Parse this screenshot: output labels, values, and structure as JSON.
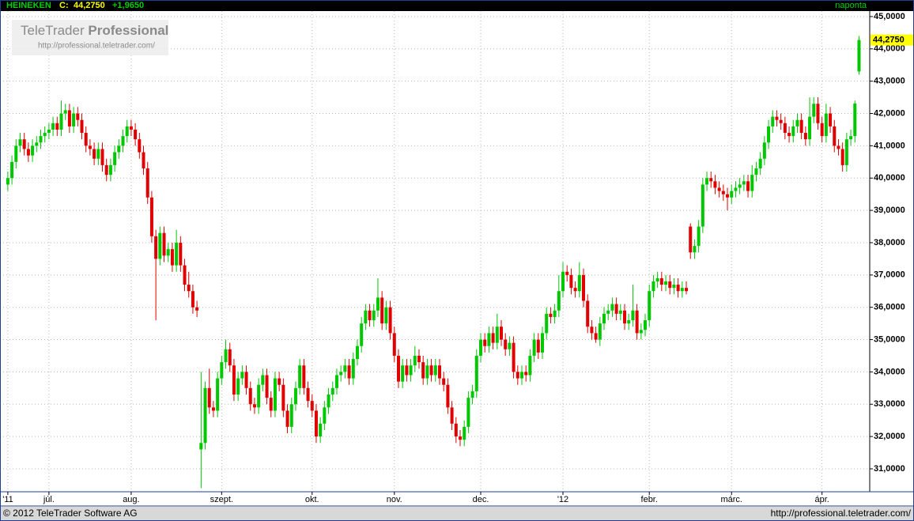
{
  "header": {
    "symbol": "HEINEKEN",
    "close_label": "C:",
    "price": "44,2750",
    "change": "+1,9650",
    "period": "naponta"
  },
  "watermark": {
    "brand": "TeleTrader",
    "product": "Professional",
    "url": "http://professional.teletrader.com/"
  },
  "footer": {
    "copyright": "© 2012 TeleTrader Software AG",
    "url": "http://professional.teletrader.com/"
  },
  "chart_data": {
    "type": "candlestick",
    "up_color": "#00c800",
    "down_color": "#e00000",
    "grid": true,
    "ylim": [
      30.29,
      45.17
    ],
    "yticks": [
      {
        "value": 31,
        "label": "31,0000"
      },
      {
        "value": 32,
        "label": "32,0000"
      },
      {
        "value": 33,
        "label": "33,0000"
      },
      {
        "value": 34,
        "label": "34,0000"
      },
      {
        "value": 35,
        "label": "35,0000"
      },
      {
        "value": 36,
        "label": "36,0000"
      },
      {
        "value": 37,
        "label": "37,0000"
      },
      {
        "value": 38,
        "label": "38,0000"
      },
      {
        "value": 39,
        "label": "39,0000"
      },
      {
        "value": 40,
        "label": "40,0000"
      },
      {
        "value": 41,
        "label": "41,0000"
      },
      {
        "value": 42,
        "label": "42,0000"
      },
      {
        "value": 43,
        "label": "43,0000"
      },
      {
        "value": 44,
        "label": "44,0000"
      },
      {
        "value": 45,
        "label": "45,0000"
      }
    ],
    "xlim": [
      -1.9,
      209.6
    ],
    "xticks": [
      {
        "value": 0,
        "label": "'11"
      },
      {
        "value": 10,
        "label": "júl."
      },
      {
        "value": 30,
        "label": "aug."
      },
      {
        "value": 52,
        "label": "szept."
      },
      {
        "value": 74,
        "label": "okt."
      },
      {
        "value": 94,
        "label": "nov."
      },
      {
        "value": 115,
        "label": "dec."
      },
      {
        "value": 135,
        "label": "'12"
      },
      {
        "value": 156,
        "label": "febr."
      },
      {
        "value": 176,
        "label": "márc."
      },
      {
        "value": 198,
        "label": "ápr."
      }
    ],
    "open": [
      39.8,
      40.0,
      40.5,
      41.0,
      41.2,
      40.9,
      40.7,
      41.0,
      41.1,
      41.3,
      41.4,
      41.5,
      41.7,
      41.5,
      42.0,
      42.1,
      41.6,
      42.0,
      41.8,
      41.4,
      41.0,
      40.9,
      40.6,
      40.9,
      40.4,
      40.1,
      40.4,
      40.8,
      41.0,
      41.3,
      41.6,
      41.5,
      41.2,
      40.8,
      40.3,
      39.4,
      38.2,
      37.5,
      38.3,
      37.6,
      37.8,
      37.3,
      38.0,
      37.3,
      36.7,
      36.5,
      36.0,
      31.6,
      31.8,
      33.5,
      32.9,
      32.8,
      33.8,
      34.3,
      34.7,
      34.2,
      33.3,
      33.8,
      34.0,
      33.5,
      33.0,
      32.9,
      33.6,
      33.9,
      33.2,
      32.8,
      33.8,
      33.6,
      32.8,
      32.3,
      33.0,
      33.5,
      34.2,
      33.5,
      33.1,
      32.8,
      32.0,
      32.4,
      32.9,
      33.3,
      33.5,
      33.9,
      34.0,
      34.2,
      33.8,
      34.4,
      34.8,
      35.5,
      35.9,
      35.6,
      35.9,
      36.3,
      35.5,
      36.0,
      35.2,
      34.5,
      33.7,
      34.2,
      33.9,
      34.2,
      34.5,
      34.3,
      33.8,
      34.2,
      33.9,
      34.2,
      33.8,
      33.6,
      32.9,
      32.4,
      32.0,
      31.9,
      32.3,
      33.2,
      33.4,
      34.5,
      35.0,
      34.8,
      35.2,
      34.9,
      35.4,
      35.0,
      34.7,
      34.9,
      34.0,
      33.8,
      34.0,
      33.9,
      34.5,
      35.0,
      34.6,
      35.2,
      35.8,
      35.7,
      35.9,
      36.5,
      37.1,
      37.0,
      36.6,
      36.5,
      37.0,
      36.2,
      35.4,
      35.2,
      35.0,
      35.5,
      35.8,
      35.9,
      36.1,
      35.8,
      35.9,
      35.5,
      35.6,
      35.9,
      35.2,
      35.3,
      35.6,
      36.5,
      36.8,
      36.9,
      36.7,
      36.8,
      36.6,
      36.7,
      36.5,
      36.6,
      38.5,
      37.7,
      37.9,
      38.5,
      39.8,
      40.0,
      39.9,
      39.7,
      39.6,
      39.5,
      39.4,
      39.6,
      39.7,
      39.8,
      39.9,
      39.6,
      40.1,
      40.3,
      40.6,
      41.1,
      41.6,
      41.9,
      41.8,
      41.7,
      41.4,
      41.3,
      41.6,
      41.8,
      41.4,
      41.2,
      41.9,
      42.3,
      41.7,
      41.3,
      42.0,
      41.6,
      41.0,
      40.9,
      40.4,
      41.2,
      41.3,
      43.3
    ],
    "high": [
      40.2,
      40.7,
      41.2,
      41.4,
      41.4,
      41.1,
      41.2,
      41.3,
      41.5,
      41.6,
      41.7,
      41.9,
      41.9,
      42.4,
      42.3,
      42.3,
      42.2,
      42.2,
      42.0,
      41.6,
      41.2,
      41.1,
      41.1,
      41.1,
      40.6,
      40.6,
      41.0,
      41.2,
      41.5,
      41.8,
      41.8,
      41.7,
      41.4,
      41.0,
      40.5,
      39.6,
      38.4,
      38.5,
      38.5,
      38.0,
      38.0,
      38.4,
      38.2,
      37.5,
      37.1,
      36.7,
      36.2,
      34.0,
      33.7,
      34.1,
      33.1,
      34.0,
      34.5,
      35.0,
      34.9,
      34.4,
      34.0,
      34.2,
      34.2,
      33.7,
      33.2,
      33.8,
      34.1,
      34.1,
      33.4,
      34.0,
      34.0,
      33.8,
      33.0,
      33.2,
      33.7,
      34.4,
      34.4,
      33.7,
      33.3,
      33.0,
      32.6,
      33.1,
      33.5,
      33.7,
      34.1,
      34.2,
      34.4,
      34.4,
      34.6,
      35.0,
      35.7,
      36.1,
      36.1,
      36.1,
      36.9,
      36.5,
      36.2,
      36.2,
      35.4,
      34.7,
      34.4,
      34.4,
      34.4,
      34.8,
      34.7,
      34.5,
      34.4,
      34.4,
      34.4,
      34.4,
      34.0,
      33.8,
      33.1,
      32.6,
      32.2,
      32.5,
      33.4,
      33.6,
      34.7,
      35.2,
      35.2,
      35.4,
      35.4,
      35.8,
      35.6,
      35.2,
      35.1,
      35.1,
      34.2,
      34.2,
      34.2,
      34.7,
      35.2,
      35.2,
      35.4,
      36.0,
      36.0,
      36.1,
      37.0,
      37.4,
      37.3,
      37.2,
      36.8,
      37.4,
      37.2,
      36.4,
      35.6,
      35.4,
      35.7,
      36.0,
      36.1,
      36.3,
      36.3,
      36.1,
      36.1,
      35.8,
      36.7,
      36.1,
      35.5,
      35.8,
      36.7,
      37.0,
      37.1,
      37.1,
      37.0,
      37.0,
      36.9,
      36.9,
      36.8,
      36.8,
      38.6,
      38.1,
      38.7,
      40.0,
      40.2,
      40.2,
      40.1,
      39.9,
      39.8,
      39.7,
      39.8,
      39.9,
      40.0,
      40.1,
      40.1,
      40.4,
      40.5,
      40.8,
      41.3,
      41.8,
      42.1,
      42.1,
      42.0,
      41.9,
      41.6,
      41.8,
      42.0,
      42.0,
      41.6,
      42.5,
      42.5,
      42.5,
      41.9,
      42.3,
      42.2,
      41.8,
      41.2,
      41.1,
      41.4,
      41.5,
      42.4,
      44.4
    ],
    "low": [
      39.6,
      39.8,
      40.3,
      40.8,
      40.7,
      40.5,
      40.5,
      40.8,
      40.9,
      41.1,
      41.2,
      41.3,
      41.3,
      41.3,
      41.8,
      41.4,
      41.4,
      41.6,
      41.2,
      40.8,
      40.7,
      40.4,
      40.4,
      40.2,
      39.9,
      39.9,
      40.2,
      40.6,
      40.8,
      41.1,
      41.3,
      41.0,
      40.6,
      40.1,
      39.2,
      38.0,
      35.6,
      37.3,
      37.4,
      37.4,
      37.1,
      37.1,
      37.1,
      36.5,
      36.3,
      35.8,
      35.7,
      30.4,
      31.6,
      32.7,
      32.6,
      32.6,
      33.6,
      34.1,
      34.0,
      33.1,
      33.1,
      33.6,
      33.3,
      32.8,
      32.7,
      32.7,
      33.4,
      33.0,
      32.6,
      32.6,
      33.4,
      32.6,
      32.1,
      32.1,
      32.8,
      33.3,
      33.3,
      32.9,
      32.6,
      31.8,
      31.8,
      32.2,
      32.7,
      33.1,
      33.3,
      33.7,
      33.8,
      33.6,
      33.6,
      34.2,
      34.6,
      35.3,
      35.4,
      35.4,
      35.7,
      35.3,
      35.3,
      35.0,
      34.3,
      33.5,
      33.5,
      33.7,
      33.7,
      34.0,
      34.1,
      33.6,
      33.6,
      33.7,
      33.7,
      33.6,
      33.4,
      32.7,
      32.2,
      31.8,
      31.7,
      31.7,
      32.1,
      33.0,
      33.2,
      34.3,
      34.6,
      34.6,
      34.7,
      34.7,
      34.8,
      34.5,
      34.5,
      33.8,
      33.6,
      33.6,
      33.7,
      33.7,
      34.3,
      34.4,
      34.4,
      35.0,
      35.5,
      35.5,
      35.7,
      36.3,
      36.8,
      36.4,
      36.3,
      36.3,
      36.0,
      35.2,
      35.0,
      34.9,
      34.8,
      35.3,
      35.6,
      35.7,
      35.6,
      35.6,
      35.3,
      35.3,
      35.4,
      35.0,
      35.0,
      35.1,
      35.4,
      36.3,
      36.6,
      36.5,
      36.5,
      36.4,
      36.4,
      36.3,
      36.3,
      36.4,
      37.5,
      37.5,
      37.7,
      38.3,
      39.6,
      39.7,
      39.5,
      39.4,
      39.3,
      39.0,
      39.2,
      39.4,
      39.5,
      39.6,
      39.4,
      39.4,
      39.9,
      40.1,
      40.4,
      40.9,
      41.4,
      41.6,
      41.5,
      41.2,
      41.1,
      41.1,
      41.4,
      41.2,
      41.0,
      41.0,
      41.7,
      41.5,
      41.1,
      41.1,
      41.4,
      40.8,
      40.7,
      40.2,
      40.2,
      41.0,
      41.1,
      43.2
    ],
    "close": [
      40.0,
      40.5,
      41.0,
      41.2,
      40.9,
      40.7,
      41.0,
      41.1,
      41.3,
      41.4,
      41.5,
      41.7,
      41.5,
      42.0,
      42.1,
      41.6,
      42.0,
      41.8,
      41.4,
      41.0,
      40.9,
      40.6,
      40.9,
      40.4,
      40.1,
      40.4,
      40.8,
      41.0,
      41.3,
      41.6,
      41.5,
      41.2,
      40.8,
      40.3,
      39.4,
      38.2,
      37.5,
      38.3,
      37.6,
      37.8,
      37.3,
      38.0,
      37.3,
      36.7,
      36.5,
      36.0,
      35.9,
      31.8,
      33.5,
      32.9,
      32.8,
      33.8,
      34.3,
      34.7,
      34.2,
      33.3,
      33.8,
      34.0,
      33.5,
      33.0,
      32.9,
      33.6,
      33.9,
      33.2,
      32.8,
      33.8,
      33.6,
      32.8,
      32.3,
      33.0,
      33.5,
      34.2,
      33.5,
      33.1,
      32.8,
      32.0,
      32.4,
      32.9,
      33.3,
      33.5,
      33.9,
      34.0,
      34.2,
      33.8,
      34.4,
      34.8,
      35.5,
      35.9,
      35.6,
      35.9,
      36.3,
      35.5,
      36.0,
      35.2,
      34.5,
      33.7,
      34.2,
      33.9,
      34.2,
      34.5,
      34.3,
      33.8,
      34.2,
      33.9,
      34.2,
      33.8,
      33.6,
      32.9,
      32.4,
      32.0,
      31.9,
      32.3,
      33.2,
      33.4,
      34.5,
      35.0,
      34.8,
      35.2,
      34.9,
      35.4,
      35.0,
      34.7,
      34.9,
      34.0,
      33.8,
      34.0,
      33.9,
      34.5,
      35.0,
      34.6,
      35.2,
      35.8,
      35.7,
      35.9,
      36.5,
      37.1,
      37.0,
      36.6,
      36.5,
      37.0,
      36.2,
      35.4,
      35.2,
      35.0,
      35.5,
      35.8,
      35.9,
      36.1,
      35.8,
      35.9,
      35.5,
      35.6,
      35.9,
      35.2,
      35.3,
      35.6,
      36.5,
      36.8,
      36.9,
      36.7,
      36.8,
      36.6,
      36.7,
      36.5,
      36.6,
      36.5,
      37.7,
      37.9,
      38.5,
      39.8,
      40.0,
      39.9,
      39.7,
      39.6,
      39.5,
      39.4,
      39.6,
      39.7,
      39.8,
      39.9,
      39.6,
      40.1,
      40.3,
      40.6,
      41.1,
      41.6,
      41.9,
      41.8,
      41.7,
      41.4,
      41.3,
      41.6,
      41.8,
      41.4,
      41.2,
      41.9,
      42.3,
      41.7,
      41.3,
      42.0,
      41.6,
      41.0,
      40.9,
      40.4,
      41.2,
      41.3,
      42.31,
      44.275
    ]
  }
}
